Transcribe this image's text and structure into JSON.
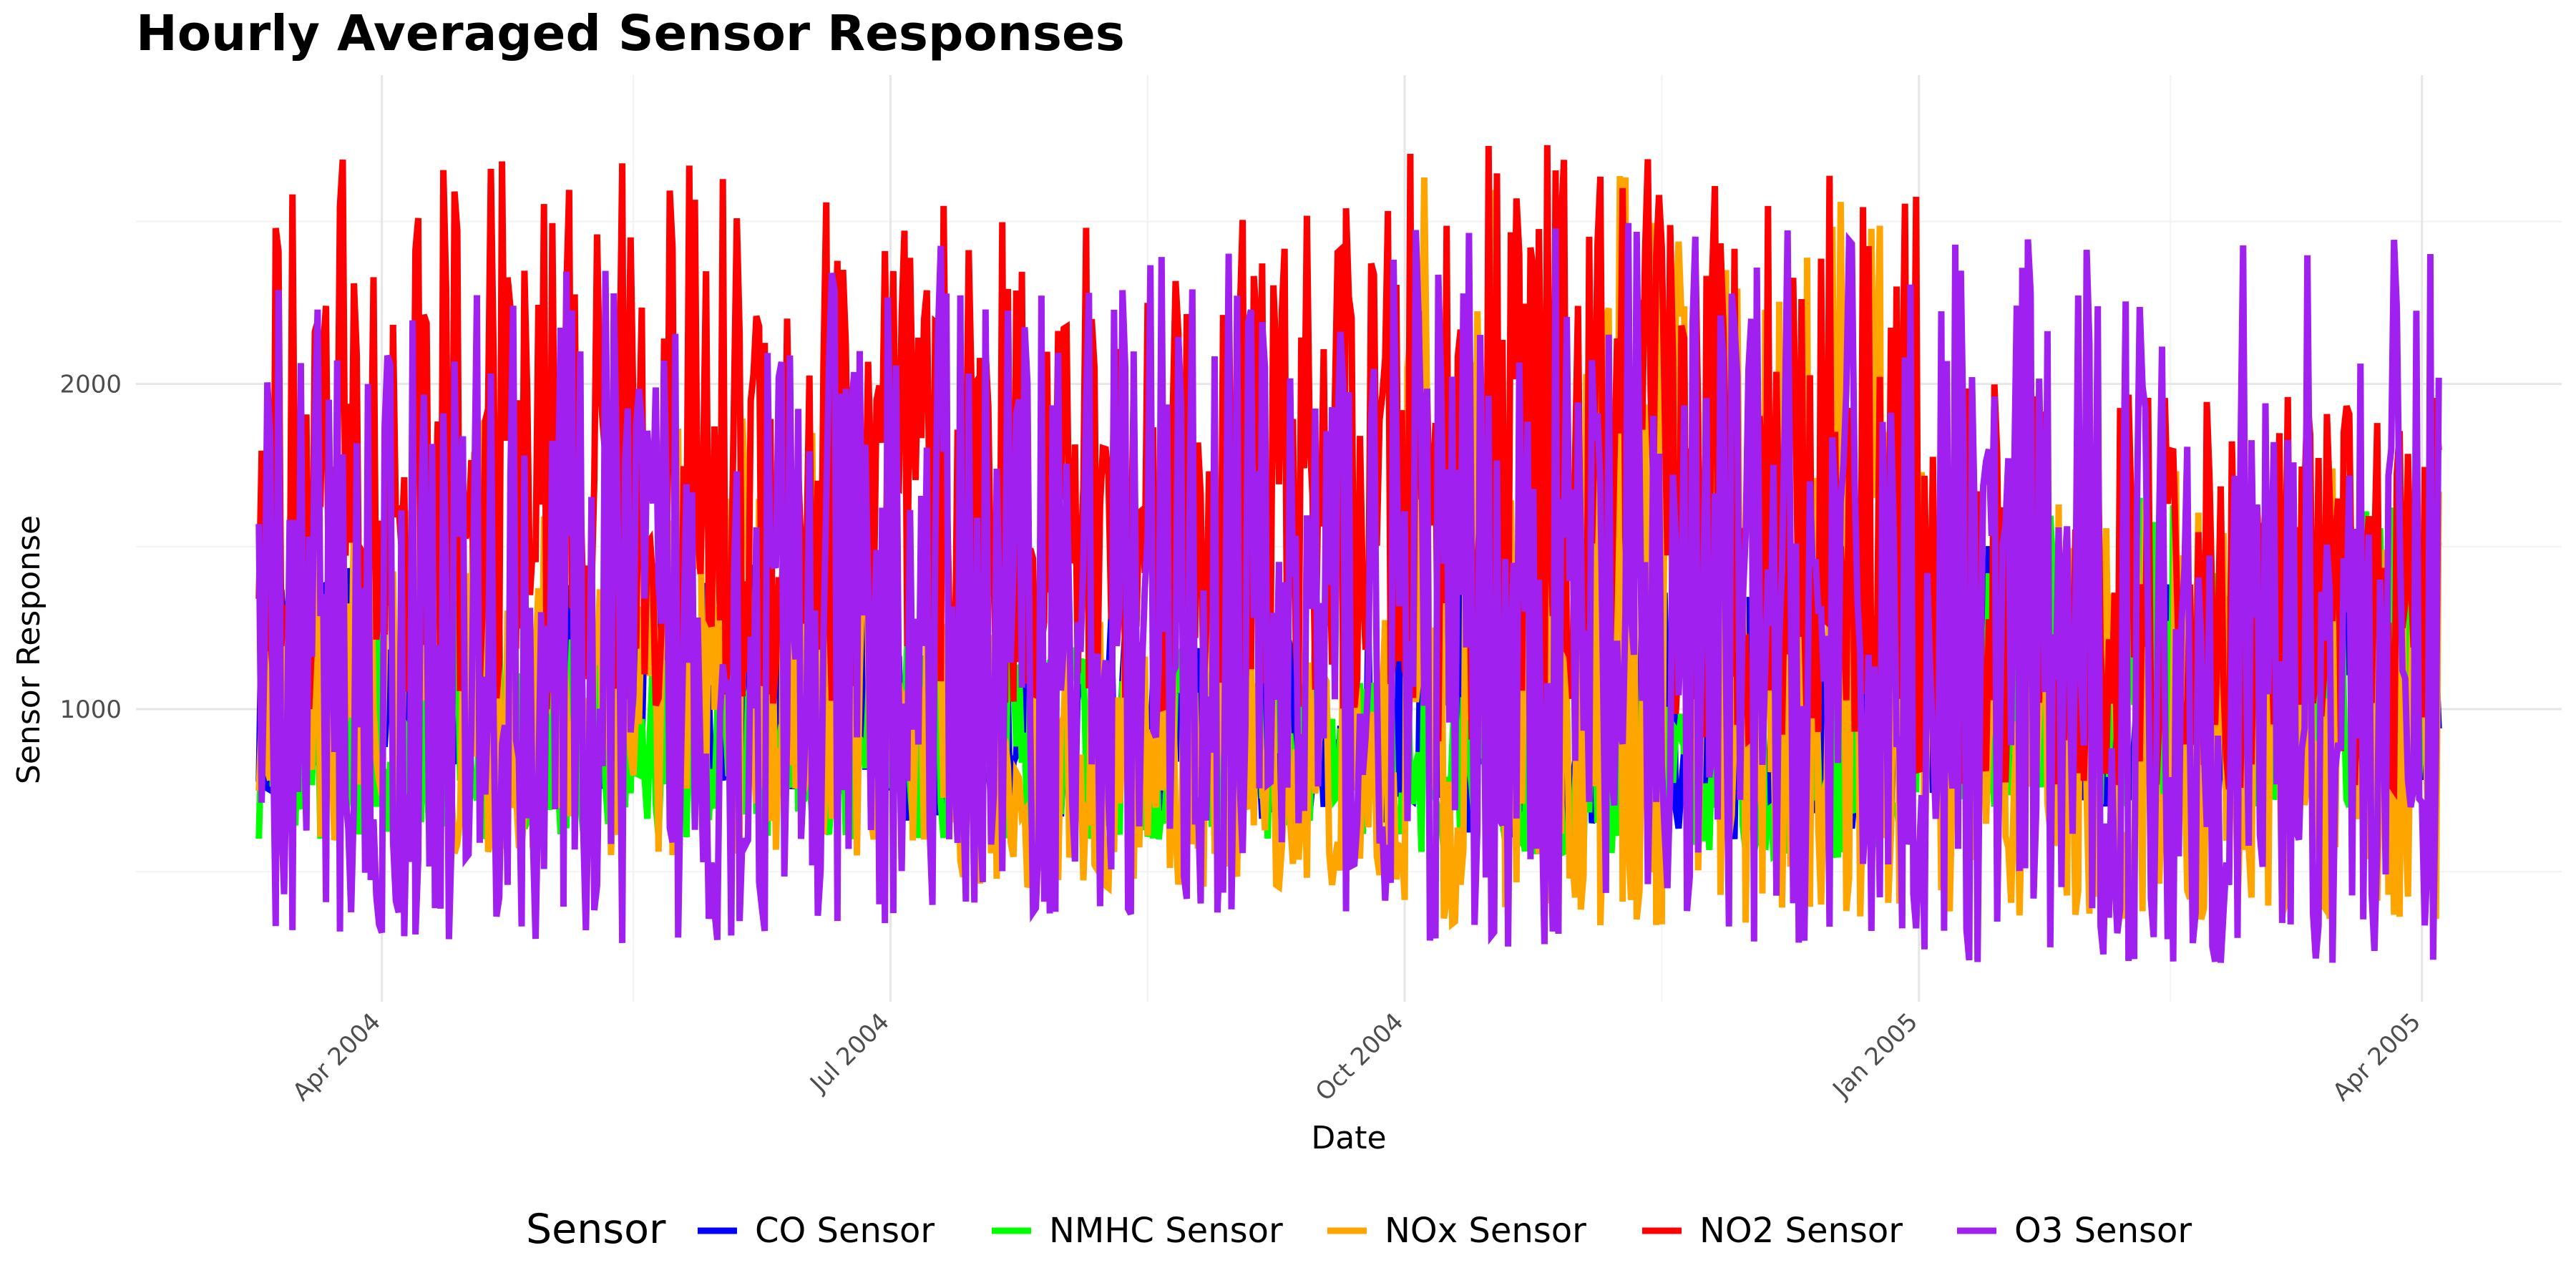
{
  "chart_data": {
    "type": "line",
    "title": "Hourly Averaged Sensor Responses",
    "xlabel": "Date",
    "ylabel": "Sensor Response",
    "x_start": "2004-03-10",
    "x_end": "2005-04-04",
    "xlim": [
      "2004-02-17",
      "2005-04-26"
    ],
    "ylim": [
      100,
      2950
    ],
    "x_ticks": [
      {
        "date": "2004-04-01",
        "label": "Apr 2004"
      },
      {
        "date": "2004-07-01",
        "label": "Jul 2004"
      },
      {
        "date": "2004-10-01",
        "label": "Oct 2004"
      },
      {
        "date": "2005-01-01",
        "label": "Jan 2005"
      },
      {
        "date": "2005-04-01",
        "label": "Apr 2005"
      }
    ],
    "x_minor_ticks": [
      "2004-05-16",
      "2004-08-16",
      "2004-11-16",
      "2005-02-15"
    ],
    "y_ticks": [
      1000,
      2000
    ],
    "y_minor_ticks": [
      500,
      1500,
      2500
    ],
    "grid": true,
    "legend": {
      "title": "Sensor",
      "position": "bottom",
      "entries": [
        "CO Sensor",
        "NMHC Sensor",
        "NOx Sensor",
        "NO2 Sensor",
        "O3 Sensor"
      ]
    },
    "series": [
      {
        "name": "CO Sensor",
        "color": "#0000FF",
        "segments": [
          {
            "from": "2004-03-10",
            "to": "2004-06-30",
            "low": 750,
            "high": 1450
          },
          {
            "from": "2004-07-01",
            "to": "2004-09-30",
            "low": 650,
            "high": 1300
          },
          {
            "from": "2004-10-01",
            "to": "2004-12-31",
            "low": 600,
            "high": 1450
          },
          {
            "from": "2005-01-01",
            "to": "2005-04-04",
            "low": 700,
            "high": 1550
          }
        ]
      },
      {
        "name": "NMHC Sensor",
        "color": "#00FF00",
        "segments": [
          {
            "from": "2004-03-10",
            "to": "2004-06-30",
            "low": 600,
            "high": 1350
          },
          {
            "from": "2004-07-01",
            "to": "2004-09-30",
            "low": 600,
            "high": 1200
          },
          {
            "from": "2004-10-01",
            "to": "2004-12-31",
            "low": 550,
            "high": 1150
          },
          {
            "from": "2005-01-01",
            "to": "2005-04-04",
            "low": 700,
            "high": 1650
          }
        ]
      },
      {
        "name": "NOx Sensor",
        "color": "#FFA500",
        "segments": [
          {
            "from": "2004-03-10",
            "to": "2004-06-30",
            "low": 550,
            "high": 1900
          },
          {
            "from": "2004-07-01",
            "to": "2004-09-30",
            "low": 450,
            "high": 1300
          },
          {
            "from": "2004-10-01",
            "to": "2004-12-31",
            "low": 330,
            "high": 2650
          },
          {
            "from": "2005-01-01",
            "to": "2005-04-04",
            "low": 350,
            "high": 1750
          }
        ]
      },
      {
        "name": "NO2 Sensor",
        "color": "#FF0000",
        "segments": [
          {
            "from": "2004-03-10",
            "to": "2004-06-30",
            "low": 1000,
            "high": 2700
          },
          {
            "from": "2004-07-01",
            "to": "2004-09-30",
            "low": 1000,
            "high": 2550
          },
          {
            "from": "2004-10-01",
            "to": "2004-12-31",
            "low": 900,
            "high": 2750
          },
          {
            "from": "2005-01-01",
            "to": "2005-04-04",
            "low": 750,
            "high": 2000
          }
        ]
      },
      {
        "name": "O3 Sensor",
        "color": "#A020F0",
        "segments": [
          {
            "from": "2004-03-10",
            "to": "2004-06-30",
            "low": 280,
            "high": 2350
          },
          {
            "from": "2004-07-01",
            "to": "2004-09-30",
            "low": 370,
            "high": 2450
          },
          {
            "from": "2004-10-01",
            "to": "2004-12-31",
            "low": 270,
            "high": 2500
          },
          {
            "from": "2005-01-01",
            "to": "2005-04-04",
            "low": 220,
            "high": 2450
          }
        ]
      }
    ]
  }
}
